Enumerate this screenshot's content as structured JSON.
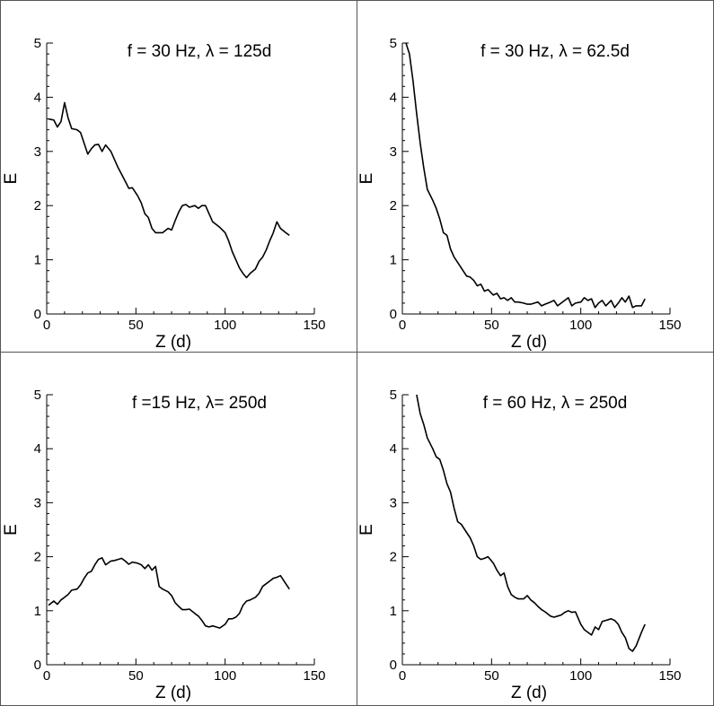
{
  "chart_data": [
    {
      "type": "line",
      "title": "f = 30 Hz, λ = 125d",
      "xlabel": "Z (d)",
      "ylabel": "E",
      "xlim": [
        0,
        150
      ],
      "ylim": [
        0,
        5
      ],
      "xticks": [
        "0",
        "50",
        "100",
        "150"
      ],
      "yticks": [
        "0",
        "1",
        "2",
        "3",
        "4",
        "5"
      ],
      "grid": false,
      "x": [
        1,
        4,
        6,
        8,
        10,
        12,
        14,
        17,
        19,
        21,
        23,
        25,
        27,
        29,
        31,
        33,
        36,
        38,
        40,
        42,
        44,
        46,
        48,
        51,
        53,
        55,
        57,
        59,
        61,
        63,
        65,
        68,
        70,
        72,
        74,
        76,
        78,
        80,
        83,
        85,
        87,
        89,
        91,
        93,
        95,
        97,
        100,
        102,
        104,
        106,
        108,
        110,
        112,
        114,
        117,
        119,
        121,
        123,
        125,
        127,
        129,
        131,
        134,
        136
      ],
      "y": [
        3.6,
        3.58,
        3.45,
        3.55,
        3.9,
        3.62,
        3.42,
        3.4,
        3.35,
        3.15,
        2.95,
        3.05,
        3.12,
        3.13,
        3.0,
        3.12,
        3.0,
        2.85,
        2.7,
        2.58,
        2.45,
        2.32,
        2.33,
        2.18,
        2.05,
        1.85,
        1.78,
        1.58,
        1.5,
        1.5,
        1.5,
        1.58,
        1.55,
        1.72,
        1.88,
        2.0,
        2.02,
        1.97,
        2.0,
        1.95,
        2.0,
        2.0,
        1.85,
        1.7,
        1.65,
        1.6,
        1.5,
        1.35,
        1.15,
        1.0,
        0.85,
        0.75,
        0.67,
        0.75,
        0.83,
        0.97,
        1.05,
        1.18,
        1.35,
        1.5,
        1.7,
        1.58,
        1.5,
        1.45
      ]
    },
    {
      "type": "line",
      "title": "f = 30 Hz, λ = 62.5d",
      "xlabel": "Z (d)",
      "ylabel": "E",
      "xlim": [
        0,
        150
      ],
      "ylim": [
        0,
        5
      ],
      "xticks": [
        "0",
        "50",
        "100",
        "150"
      ],
      "yticks": [
        "0",
        "1",
        "2",
        "3",
        "4",
        "5"
      ],
      "grid": false,
      "x": [
        2,
        4,
        6,
        8,
        10,
        12,
        14,
        17,
        19,
        21,
        23,
        25,
        27,
        29,
        31,
        33,
        36,
        38,
        40,
        42,
        44,
        46,
        48,
        51,
        53,
        55,
        57,
        59,
        61,
        63,
        65,
        68,
        70,
        72,
        74,
        76,
        78,
        80,
        83,
        85,
        87,
        89,
        91,
        93,
        95,
        97,
        100,
        102,
        104,
        106,
        108,
        110,
        112,
        114,
        117,
        119,
        121,
        123,
        125,
        127,
        129,
        131,
        134,
        136
      ],
      "y": [
        5.0,
        4.8,
        4.3,
        3.7,
        3.15,
        2.7,
        2.3,
        2.1,
        1.95,
        1.75,
        1.5,
        1.45,
        1.2,
        1.05,
        0.95,
        0.85,
        0.7,
        0.68,
        0.62,
        0.52,
        0.55,
        0.42,
        0.45,
        0.35,
        0.38,
        0.28,
        0.3,
        0.25,
        0.3,
        0.22,
        0.22,
        0.2,
        0.18,
        0.18,
        0.2,
        0.22,
        0.15,
        0.18,
        0.22,
        0.25,
        0.15,
        0.2,
        0.25,
        0.3,
        0.15,
        0.2,
        0.22,
        0.3,
        0.25,
        0.28,
        0.12,
        0.2,
        0.25,
        0.15,
        0.25,
        0.12,
        0.2,
        0.3,
        0.22,
        0.33,
        0.12,
        0.15,
        0.15,
        0.28
      ]
    },
    {
      "type": "line",
      "title": "f =15 Hz,  λ= 250d",
      "xlabel": "Z (d)",
      "ylabel": "E",
      "xlim": [
        0,
        150
      ],
      "ylim": [
        0,
        5
      ],
      "xticks": [
        "0",
        "50",
        "100",
        "150"
      ],
      "yticks": [
        "0",
        "1",
        "2",
        "3",
        "4",
        "5"
      ],
      "grid": false,
      "x": [
        1,
        4,
        6,
        8,
        10,
        12,
        14,
        17,
        19,
        21,
        23,
        25,
        27,
        29,
        31,
        33,
        36,
        38,
        40,
        42,
        44,
        46,
        48,
        51,
        53,
        55,
        57,
        59,
        61,
        63,
        65,
        68,
        70,
        72,
        74,
        76,
        78,
        80,
        83,
        85,
        87,
        89,
        91,
        93,
        95,
        97,
        100,
        102,
        104,
        106,
        108,
        110,
        112,
        114,
        117,
        119,
        121,
        123,
        125,
        127,
        129,
        131,
        134,
        136
      ],
      "y": [
        1.1,
        1.18,
        1.12,
        1.2,
        1.25,
        1.3,
        1.38,
        1.4,
        1.48,
        1.6,
        1.7,
        1.73,
        1.85,
        1.95,
        1.98,
        1.85,
        1.92,
        1.93,
        1.95,
        1.97,
        1.92,
        1.86,
        1.9,
        1.88,
        1.85,
        1.78,
        1.85,
        1.75,
        1.82,
        1.45,
        1.4,
        1.35,
        1.28,
        1.15,
        1.08,
        1.02,
        1.02,
        1.03,
        0.95,
        0.9,
        0.82,
        0.72,
        0.7,
        0.72,
        0.7,
        0.68,
        0.75,
        0.85,
        0.85,
        0.88,
        0.95,
        1.1,
        1.18,
        1.2,
        1.25,
        1.32,
        1.45,
        1.5,
        1.55,
        1.6,
        1.62,
        1.65,
        1.5,
        1.4
      ]
    },
    {
      "type": "line",
      "title": "f = 60 Hz, λ = 250d",
      "xlabel": "Z (d)",
      "ylabel": "E",
      "xlim": [
        0,
        150
      ],
      "ylim": [
        0,
        5
      ],
      "xticks": [
        "0",
        "50",
        "100",
        "150"
      ],
      "yticks": [
        "0",
        "1",
        "2",
        "3",
        "4",
        "5"
      ],
      "grid": false,
      "x": [
        8,
        10,
        12,
        14,
        17,
        19,
        21,
        23,
        25,
        27,
        29,
        31,
        33,
        36,
        38,
        40,
        42,
        44,
        46,
        48,
        51,
        53,
        55,
        57,
        59,
        61,
        63,
        65,
        68,
        70,
        72,
        74,
        76,
        78,
        80,
        83,
        85,
        87,
        89,
        91,
        93,
        95,
        97,
        100,
        102,
        104,
        106,
        108,
        110,
        112,
        114,
        117,
        119,
        121,
        123,
        125,
        127,
        129,
        131,
        134,
        136
      ],
      "y": [
        5.0,
        4.65,
        4.45,
        4.2,
        4.0,
        3.85,
        3.8,
        3.6,
        3.35,
        3.2,
        2.9,
        2.65,
        2.6,
        2.45,
        2.35,
        2.2,
        2.0,
        1.95,
        1.97,
        2.0,
        1.88,
        1.75,
        1.65,
        1.7,
        1.45,
        1.3,
        1.25,
        1.22,
        1.22,
        1.28,
        1.2,
        1.15,
        1.08,
        1.02,
        0.98,
        0.9,
        0.88,
        0.9,
        0.92,
        0.97,
        1.0,
        0.97,
        0.98,
        0.75,
        0.65,
        0.6,
        0.55,
        0.7,
        0.65,
        0.8,
        0.82,
        0.85,
        0.82,
        0.75,
        0.6,
        0.5,
        0.3,
        0.25,
        0.35,
        0.6,
        0.75
      ]
    }
  ]
}
